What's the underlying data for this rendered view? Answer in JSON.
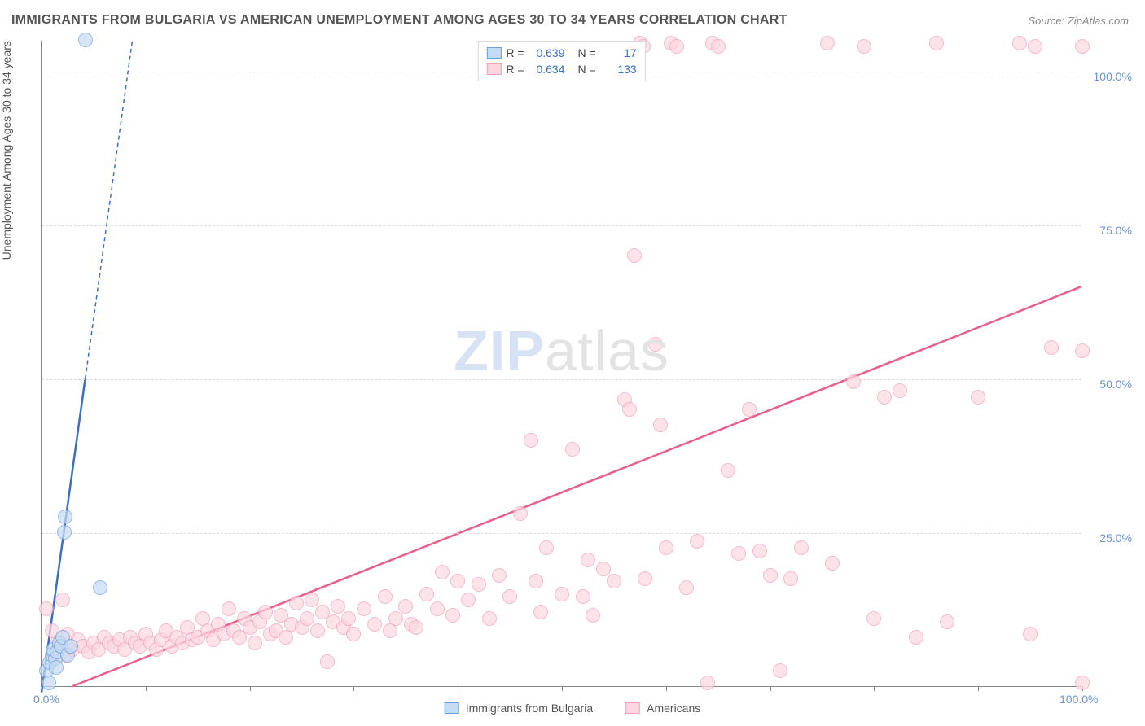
{
  "title": "IMMIGRANTS FROM BULGARIA VS AMERICAN UNEMPLOYMENT AMONG AGES 30 TO 34 YEARS CORRELATION CHART",
  "source": "Source: ZipAtlas.com",
  "y_axis_label": "Unemployment Among Ages 30 to 34 years",
  "watermark": {
    "part1": "ZIP",
    "part2": "atlas"
  },
  "chart": {
    "type": "scatter",
    "xlim": [
      0,
      100
    ],
    "ylim": [
      0,
      105
    ],
    "x_ticks": [
      0,
      10,
      20,
      30,
      40,
      50,
      60,
      70,
      80,
      90,
      100
    ],
    "x_tick_labels": {
      "0": "0.0%",
      "100": "100.0%"
    },
    "y_gridlines": [
      25,
      50,
      75,
      100
    ],
    "y_tick_labels": {
      "25": "25.0%",
      "50": "50.0%",
      "75": "75.0%",
      "100": "100.0%"
    },
    "background_color": "#ffffff",
    "grid_color": "#dddddd",
    "axis_color": "#888888",
    "tick_label_color": "#6b93d6",
    "marker_radius": 9,
    "marker_border_width": 1,
    "trend_line_width_solid": 2.5,
    "trend_line_width_dash": 1.5,
    "series": [
      {
        "id": "bulgaria",
        "label": "Immigrants from Bulgaria",
        "fill_color": "#c5daf3",
        "fill_opacity": 0.7,
        "stroke_color": "#6b9fdd",
        "line_color": "#3a6fc7",
        "R": "0.639",
        "N": "17",
        "trend": {
          "x1": 0,
          "y1": -1,
          "x2": 4.2,
          "y2": 50,
          "dash_to_y": 105
        },
        "points": [
          [
            0.5,
            2.5
          ],
          [
            0.8,
            3.8
          ],
          [
            1.0,
            5.0
          ],
          [
            1.1,
            6.0
          ],
          [
            1.3,
            4.5
          ],
          [
            1.5,
            5.5
          ],
          [
            1.7,
            7.0
          ],
          [
            1.4,
            3.0
          ],
          [
            1.9,
            6.5
          ],
          [
            2.0,
            8.0
          ],
          [
            2.2,
            25.0
          ],
          [
            2.3,
            27.5
          ],
          [
            2.5,
            5.0
          ],
          [
            2.8,
            6.5
          ],
          [
            0.7,
            0.5
          ],
          [
            5.6,
            16.0
          ],
          [
            4.2,
            105.0
          ]
        ]
      },
      {
        "id": "americans",
        "label": "Americans",
        "fill_color": "#fcd7e1",
        "fill_opacity": 0.7,
        "stroke_color": "#f19fb7",
        "line_color": "#ec5e8a",
        "R": "0.634",
        "N": "133",
        "trend": {
          "x1": 3,
          "y1": 0,
          "x2": 100,
          "y2": 65
        },
        "points": [
          [
            0.5,
            12.5
          ],
          [
            1.0,
            9.0
          ],
          [
            1.5,
            7.0
          ],
          [
            2.0,
            14.0
          ],
          [
            2.3,
            5.0
          ],
          [
            2.5,
            8.5
          ],
          [
            3.0,
            6.0
          ],
          [
            3.5,
            7.5
          ],
          [
            4.0,
            6.5
          ],
          [
            4.5,
            5.5
          ],
          [
            5.0,
            7.0
          ],
          [
            5.5,
            6.0
          ],
          [
            6.0,
            8.0
          ],
          [
            6.5,
            7.0
          ],
          [
            7.0,
            6.5
          ],
          [
            7.5,
            7.5
          ],
          [
            8.0,
            6.0
          ],
          [
            8.5,
            8.0
          ],
          [
            9.0,
            7.0
          ],
          [
            9.5,
            6.5
          ],
          [
            10.0,
            8.5
          ],
          [
            10.5,
            7.0
          ],
          [
            11.0,
            6.0
          ],
          [
            11.5,
            7.5
          ],
          [
            12.0,
            9.0
          ],
          [
            12.5,
            6.5
          ],
          [
            13.0,
            8.0
          ],
          [
            13.5,
            7.0
          ],
          [
            14.0,
            9.5
          ],
          [
            14.5,
            7.5
          ],
          [
            15.0,
            8.0
          ],
          [
            15.5,
            11.0
          ],
          [
            16.0,
            9.0
          ],
          [
            16.5,
            7.5
          ],
          [
            17.0,
            10.0
          ],
          [
            17.5,
            8.5
          ],
          [
            18.0,
            12.5
          ],
          [
            18.5,
            9.0
          ],
          [
            19.0,
            8.0
          ],
          [
            19.5,
            11.0
          ],
          [
            20.0,
            9.5
          ],
          [
            20.5,
            7.0
          ],
          [
            21.0,
            10.5
          ],
          [
            21.5,
            12.0
          ],
          [
            22.0,
            8.5
          ],
          [
            22.5,
            9.0
          ],
          [
            23.0,
            11.5
          ],
          [
            23.5,
            8.0
          ],
          [
            24.0,
            10.0
          ],
          [
            24.5,
            13.5
          ],
          [
            25.0,
            9.5
          ],
          [
            25.5,
            11.0
          ],
          [
            26.0,
            14.0
          ],
          [
            26.5,
            9.0
          ],
          [
            27.0,
            12.0
          ],
          [
            27.5,
            4.0
          ],
          [
            28.0,
            10.5
          ],
          [
            28.5,
            13.0
          ],
          [
            29.0,
            9.5
          ],
          [
            29.5,
            11.0
          ],
          [
            30.0,
            8.5
          ],
          [
            31.0,
            12.5
          ],
          [
            32.0,
            10.0
          ],
          [
            33.0,
            14.5
          ],
          [
            33.5,
            9.0
          ],
          [
            34.0,
            11.0
          ],
          [
            35.0,
            13.0
          ],
          [
            35.5,
            10.0
          ],
          [
            36.0,
            9.5
          ],
          [
            37.0,
            15.0
          ],
          [
            38.0,
            12.5
          ],
          [
            38.5,
            18.5
          ],
          [
            39.5,
            11.5
          ],
          [
            40.0,
            17.0
          ],
          [
            41.0,
            14.0
          ],
          [
            42.0,
            16.5
          ],
          [
            43.0,
            11.0
          ],
          [
            44.0,
            18.0
          ],
          [
            45.0,
            14.5
          ],
          [
            46.0,
            28.0
          ],
          [
            47.0,
            40.0
          ],
          [
            47.5,
            17.0
          ],
          [
            48.5,
            22.5
          ],
          [
            48.0,
            12.0
          ],
          [
            50.0,
            15.0
          ],
          [
            51.0,
            38.5
          ],
          [
            52.0,
            14.5
          ],
          [
            52.5,
            20.5
          ],
          [
            53.0,
            11.5
          ],
          [
            54.0,
            19.0
          ],
          [
            55.0,
            17.0
          ],
          [
            56.0,
            46.5
          ],
          [
            56.5,
            45.0
          ],
          [
            57.0,
            70.0
          ],
          [
            57.5,
            104.5
          ],
          [
            57.8,
            104.0
          ],
          [
            58.0,
            17.5
          ],
          [
            59.0,
            55.5
          ],
          [
            59.5,
            42.5
          ],
          [
            60.0,
            22.5
          ],
          [
            60.5,
            104.5
          ],
          [
            61.0,
            104.0
          ],
          [
            62.0,
            16.0
          ],
          [
            63.0,
            23.5
          ],
          [
            64.0,
            0.5
          ],
          [
            64.5,
            104.5
          ],
          [
            65.0,
            104.0
          ],
          [
            66.0,
            35.0
          ],
          [
            67.0,
            21.5
          ],
          [
            68.0,
            45.0
          ],
          [
            69.0,
            22.0
          ],
          [
            70.0,
            18.0
          ],
          [
            71.0,
            2.5
          ],
          [
            72.0,
            17.5
          ],
          [
            73.0,
            22.5
          ],
          [
            75.5,
            104.5
          ],
          [
            76.0,
            20.0
          ],
          [
            78.0,
            49.5
          ],
          [
            79.0,
            104.0
          ],
          [
            80.0,
            11.0
          ],
          [
            81.0,
            47.0
          ],
          [
            82.5,
            48.0
          ],
          [
            84.0,
            8.0
          ],
          [
            86.0,
            104.5
          ],
          [
            87.0,
            10.5
          ],
          [
            90.0,
            47.0
          ],
          [
            94.0,
            104.5
          ],
          [
            95.0,
            8.5
          ],
          [
            95.5,
            104.0
          ],
          [
            97.0,
            55.0
          ],
          [
            100.0,
            104.0
          ],
          [
            100.0,
            54.5
          ],
          [
            100.0,
            0.5
          ]
        ]
      }
    ]
  },
  "legend_top": {
    "R_label": "R =",
    "N_label": "N ="
  },
  "legend_bottom": {
    "items": [
      "bulgaria",
      "americans"
    ]
  }
}
